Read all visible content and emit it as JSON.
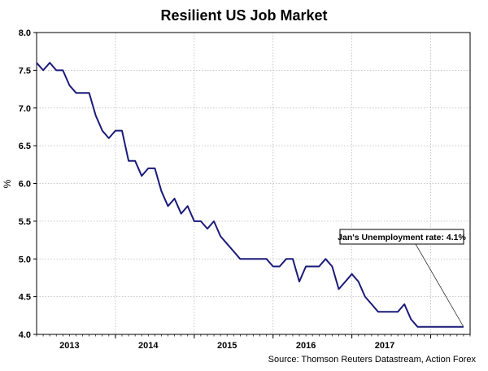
{
  "chart_data": {
    "type": "line",
    "title": "Resilient US Job Market",
    "ylabel": "%",
    "xlabel": "",
    "source": "Source: Thomson Reuters Datastream, Action Forex",
    "ylim": [
      4.0,
      8.0
    ],
    "yticks": [
      "4.0",
      "4.5",
      "5.0",
      "5.5",
      "6.0",
      "6.5",
      "7.0",
      "7.5",
      "8.0"
    ],
    "xlim": [
      "2012-08",
      "2018-02"
    ],
    "x_year_labels": [
      {
        "label": "2013",
        "center": "2013-01"
      },
      {
        "label": "2014",
        "center": "2014-01"
      },
      {
        "label": "2015",
        "center": "2015-01"
      },
      {
        "label": "2016",
        "center": "2016-01"
      },
      {
        "label": "2017",
        "center": "2017-01"
      }
    ],
    "x_gridlines": [
      "2013-08",
      "2014-08",
      "2015-08",
      "2016-08",
      "2017-08"
    ],
    "grid": true,
    "series": [
      {
        "color": "#1a1a7a",
        "x": [
          "2012-08",
          "2012-09",
          "2012-10",
          "2012-11",
          "2012-12",
          "2013-01",
          "2013-02",
          "2013-03",
          "2013-04",
          "2013-05",
          "2013-06",
          "2013-07",
          "2013-08",
          "2013-09",
          "2013-10",
          "2013-11",
          "2013-12",
          "2014-01",
          "2014-02",
          "2014-03",
          "2014-04",
          "2014-05",
          "2014-06",
          "2014-07",
          "2014-08",
          "2014-09",
          "2014-10",
          "2014-11",
          "2014-12",
          "2015-01",
          "2015-02",
          "2015-03",
          "2015-04",
          "2015-05",
          "2015-06",
          "2015-07",
          "2015-08",
          "2015-09",
          "2015-10",
          "2015-11",
          "2015-12",
          "2016-01",
          "2016-02",
          "2016-03",
          "2016-04",
          "2016-05",
          "2016-06",
          "2016-07",
          "2016-08",
          "2016-09",
          "2016-10",
          "2016-11",
          "2016-12",
          "2017-01",
          "2017-02",
          "2017-03",
          "2017-04",
          "2017-05",
          "2017-06",
          "2017-07",
          "2017-08",
          "2017-09",
          "2017-10",
          "2017-11",
          "2017-12",
          "2018-01"
        ],
        "values": [
          7.6,
          7.5,
          7.6,
          7.5,
          7.5,
          7.3,
          7.2,
          7.2,
          7.2,
          6.9,
          6.7,
          6.6,
          6.7,
          6.7,
          6.3,
          6.3,
          6.1,
          6.2,
          6.2,
          5.9,
          5.7,
          5.8,
          5.6,
          5.7,
          5.5,
          5.5,
          5.4,
          5.5,
          5.3,
          5.2,
          5.1,
          5.0,
          5.0,
          5.0,
          5.0,
          5.0,
          4.9,
          4.9,
          5.0,
          5.0,
          4.7,
          4.9,
          4.9,
          4.9,
          5.0,
          4.9,
          4.6,
          4.7,
          4.8,
          4.7,
          4.5,
          4.4,
          4.3,
          4.3,
          4.3,
          4.3,
          4.4,
          4.2,
          4.1,
          4.1,
          4.1,
          4.1,
          4.1,
          4.1,
          4.1,
          4.1
        ]
      }
    ],
    "annotation": {
      "text": "Jan's Unemployment rate: 4.1%",
      "points_to": {
        "x": "2018-01",
        "y": 4.1
      }
    },
    "colors": {
      "line": "#1a1a7a",
      "grid": "#b8b8b8",
      "axis": "#000000"
    }
  }
}
